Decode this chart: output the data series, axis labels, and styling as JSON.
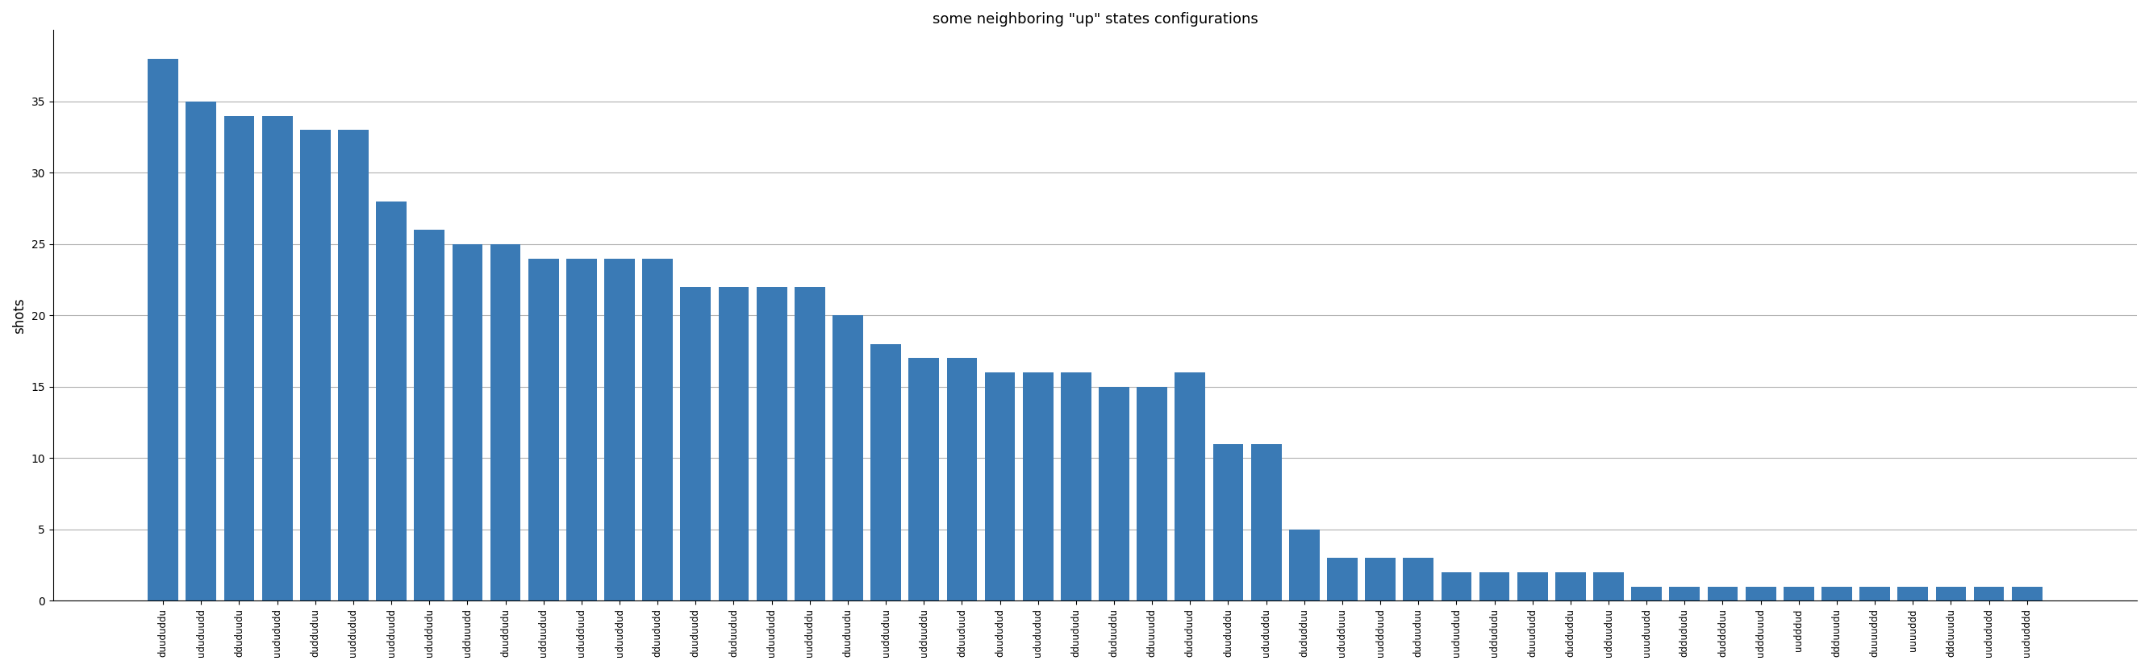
{
  "title": "some neighboring \"up\" states configurations",
  "ylabel": "shots",
  "bar_color": "#3a7ab5",
  "categories": [
    "duududdu",
    "ududuudd",
    "dduduudu",
    "uudududd",
    "dudduduu",
    "uuddudud",
    "uudduudd",
    "ududdudu",
    "udduuudd",
    "duuddudu",
    "udduudud",
    "ududduud",
    "uduuddud",
    "dduududd",
    "duuduudd",
    "duduudud",
    "uduududd",
    "uudduddu",
    "duuduudu",
    "uudduduu",
    "udduuddu",
    "dduuduud",
    "duududud",
    "udududud",
    "dduududu",
    "duduuddu",
    "dduuuudd",
    "dududuud",
    "duududdu",
    "udududdu",
    "dududduu",
    "ududduuu",
    "uuddduud",
    "duduuduu",
    "uuduudud",
    "uddududu",
    "duuududd",
    "dudduddu",
    "udduuduu",
    "uuuduudd",
    "dddududu",
    "dudddduu",
    "uddduuud",
    "uudddud",
    "ddduuudu",
    "duuuuddd",
    "uuuuddd",
    "ddduuudu",
    "uudududd",
    "uududddd"
  ],
  "values": [
    38,
    35,
    34,
    34,
    33,
    33,
    28,
    26,
    25,
    25,
    24,
    24,
    24,
    24,
    22,
    22,
    22,
    22,
    20,
    18,
    17,
    17,
    16,
    16,
    16,
    15,
    15,
    16,
    11,
    11,
    5,
    3,
    3,
    3,
    2,
    2,
    2,
    2,
    2,
    1,
    1,
    1,
    1,
    1,
    1,
    1,
    1,
    1,
    1,
    1
  ],
  "ylim": [
    0,
    40
  ],
  "yticks": [
    0,
    5,
    10,
    15,
    20,
    25,
    30,
    35
  ],
  "grid_color": "#b0b0b0",
  "background_color": "#ffffff",
  "fig_bg_color": "#ffffff"
}
